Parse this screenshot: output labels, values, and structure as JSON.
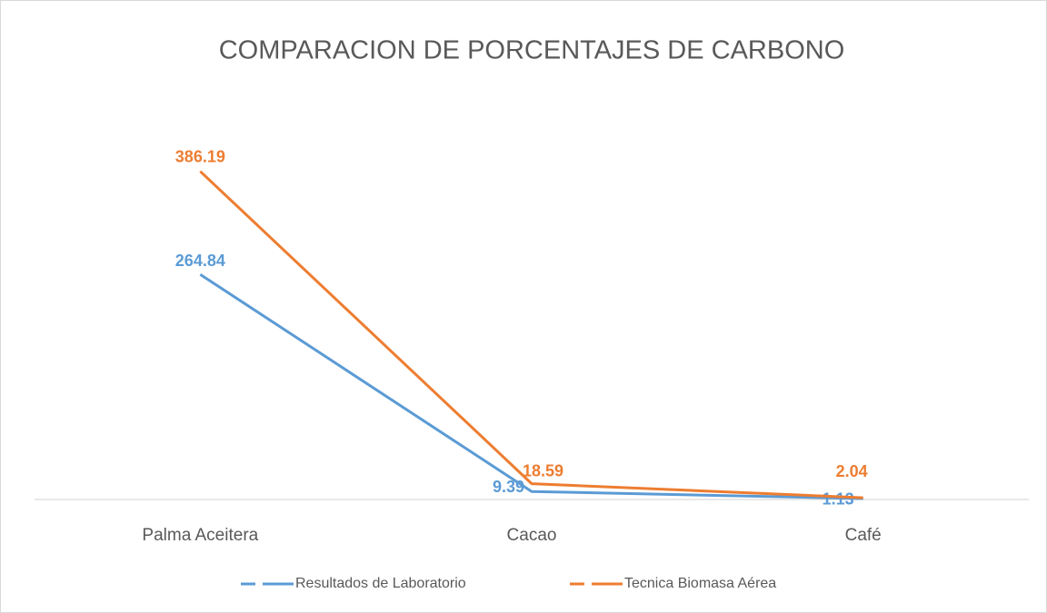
{
  "chart_data": {
    "type": "line",
    "title": "COMPARACION DE PORCENTAJES DE CARBONO",
    "categories": [
      "Palma Aceitera",
      "Cacao",
      "Café"
    ],
    "series": [
      {
        "name": "Resultados de Laboratorio",
        "color": "#5b9bd5",
        "values": [
          264.84,
          9.39,
          1.13
        ]
      },
      {
        "name": "Tecnica Biomasa Aérea",
        "color": "#ed7d31",
        "values": [
          386.19,
          18.59,
          2.04
        ]
      }
    ],
    "ylim": [
      0,
      450
    ]
  }
}
